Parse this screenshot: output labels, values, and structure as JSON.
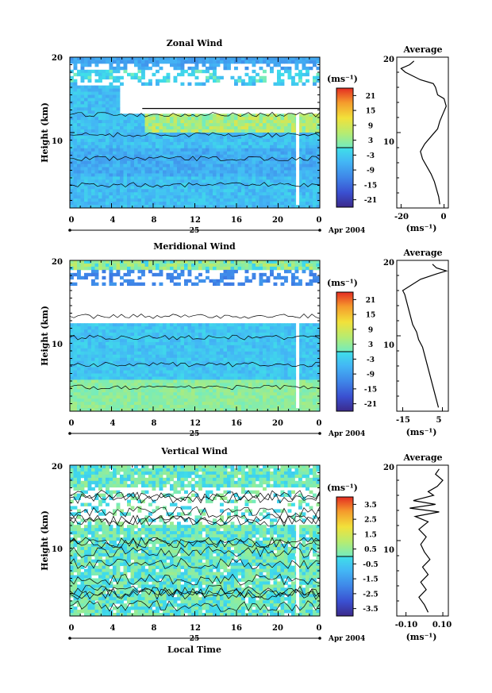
{
  "chart_data": [
    {
      "type": "heatmap",
      "title": "Zonal Wind",
      "ylabel": "Height (km)",
      "ylim": [
        0,
        20
      ],
      "xlim": [
        0,
        24
      ],
      "y_ticks": [
        "10",
        "20"
      ],
      "x_ticks": [
        "0",
        "4",
        "8",
        "12",
        "16",
        "20",
        "0"
      ],
      "date_day": "25",
      "date_label": "Apr 2004",
      "colorbar": {
        "unit": "(ms⁻¹)",
        "ticks": [
          "21",
          "15",
          "9",
          "3",
          "-3",
          "-9",
          "-15",
          "-21"
        ],
        "range": [
          -24,
          24
        ]
      },
      "profile": {
        "title": "Average",
        "xlabel": "(ms⁻¹)",
        "xlim": [
          -22,
          2
        ],
        "x_ticks": [
          "-20",
          "0"
        ],
        "y_ticks": [
          "10",
          "20"
        ],
        "points": [
          [
            -2,
            0.5
          ],
          [
            -2.5,
            1.5
          ],
          [
            -3.5,
            2.5
          ],
          [
            -4.5,
            3.5
          ],
          [
            -6,
            4.5
          ],
          [
            -8,
            5.5
          ],
          [
            -10,
            6.5
          ],
          [
            -11,
            7.5
          ],
          [
            -9,
            8.5
          ],
          [
            -6,
            9.5
          ],
          [
            -3,
            10.5
          ],
          [
            -2,
            11.5
          ],
          [
            -0.5,
            12.5
          ],
          [
            1,
            13.5
          ],
          [
            0,
            14.5
          ],
          [
            -3,
            15
          ],
          [
            -4,
            16
          ],
          [
            -5,
            16.5
          ],
          [
            -11,
            17
          ],
          [
            -18,
            18
          ],
          [
            -20,
            18.5
          ],
          [
            -16,
            19
          ],
          [
            -14,
            19.5
          ]
        ]
      }
    },
    {
      "type": "heatmap",
      "title": "Meridional Wind",
      "ylabel": "Height (km)",
      "ylim": [
        0,
        20
      ],
      "xlim": [
        0,
        24
      ],
      "y_ticks": [
        "10",
        "20"
      ],
      "x_ticks": [
        "0",
        "4",
        "8",
        "12",
        "16",
        "20",
        "0"
      ],
      "date_day": "25",
      "date_label": "Apr 2004",
      "colorbar": {
        "unit": "(ms⁻¹)",
        "ticks": [
          "21",
          "15",
          "9",
          "3",
          "-3",
          "-9",
          "-15",
          "-21"
        ],
        "range": [
          -24,
          24
        ]
      },
      "profile": {
        "title": "Average",
        "xlabel": "(ms⁻¹)",
        "xlim": [
          -18,
          8
        ],
        "x_ticks": [
          "-15",
          "5"
        ],
        "y_ticks": [
          "10",
          "20"
        ],
        "points": [
          [
            3,
            0.5
          ],
          [
            2,
            1.5
          ],
          [
            1,
            2.5
          ],
          [
            0,
            3.5
          ],
          [
            -1,
            4.5
          ],
          [
            -2,
            5.5
          ],
          [
            -3,
            6.5
          ],
          [
            -4,
            7.5
          ],
          [
            -5,
            8.5
          ],
          [
            -7,
            9.5
          ],
          [
            -8,
            10.5
          ],
          [
            -10,
            11.5
          ],
          [
            -11,
            12.5
          ],
          [
            -12,
            13.5
          ],
          [
            -13,
            14.5
          ],
          [
            -14,
            15.5
          ],
          [
            -15,
            16
          ],
          [
            -12,
            16.5
          ],
          [
            -6,
            17.5
          ],
          [
            2,
            18.2
          ],
          [
            7,
            18.6
          ],
          [
            2,
            19
          ],
          [
            0,
            19.5
          ]
        ]
      }
    },
    {
      "type": "heatmap",
      "title": "Vertical Wind",
      "ylabel": "Height (km)",
      "xlabel": "Local Time",
      "ylim": [
        0,
        20
      ],
      "xlim": [
        0,
        24
      ],
      "y_ticks": [
        "10",
        "20"
      ],
      "x_ticks": [
        "0",
        "4",
        "8",
        "12",
        "16",
        "20",
        "0"
      ],
      "date_day": "25",
      "date_label": "Apr 2004",
      "colorbar": {
        "unit": "(ms⁻¹)",
        "ticks": [
          "3.5",
          "2.5",
          "1.5",
          "0.5",
          "-0.5",
          "-1.5",
          "-2.5",
          "-3.5"
        ],
        "range": [
          -4,
          4
        ]
      },
      "profile": {
        "title": "Average",
        "xlabel": "(ms⁻¹)",
        "xlim": [
          -0.15,
          0.13
        ],
        "x_ticks": [
          "-0.10",
          "0.10"
        ],
        "y_ticks": [
          "10",
          "20"
        ],
        "points": [
          [
            0.02,
            0.5
          ],
          [
            0.0,
            1.5
          ],
          [
            -0.03,
            2.5
          ],
          [
            0.01,
            3.5
          ],
          [
            -0.02,
            4.5
          ],
          [
            0.02,
            5.5
          ],
          [
            -0.01,
            6.5
          ],
          [
            0.03,
            7.5
          ],
          [
            0.0,
            8.5
          ],
          [
            -0.02,
            9.5
          ],
          [
            0.01,
            10.5
          ],
          [
            -0.03,
            11.5
          ],
          [
            0.02,
            12.5
          ],
          [
            -0.05,
            13.2
          ],
          [
            0.08,
            13.8
          ],
          [
            -0.08,
            14.3
          ],
          [
            0.06,
            14.8
          ],
          [
            -0.06,
            15.3
          ],
          [
            0.05,
            16
          ],
          [
            0.02,
            16.5
          ],
          [
            0.07,
            17.2
          ],
          [
            0.1,
            18
          ],
          [
            0.06,
            18.8
          ],
          [
            0.08,
            19.5
          ]
        ]
      }
    }
  ]
}
